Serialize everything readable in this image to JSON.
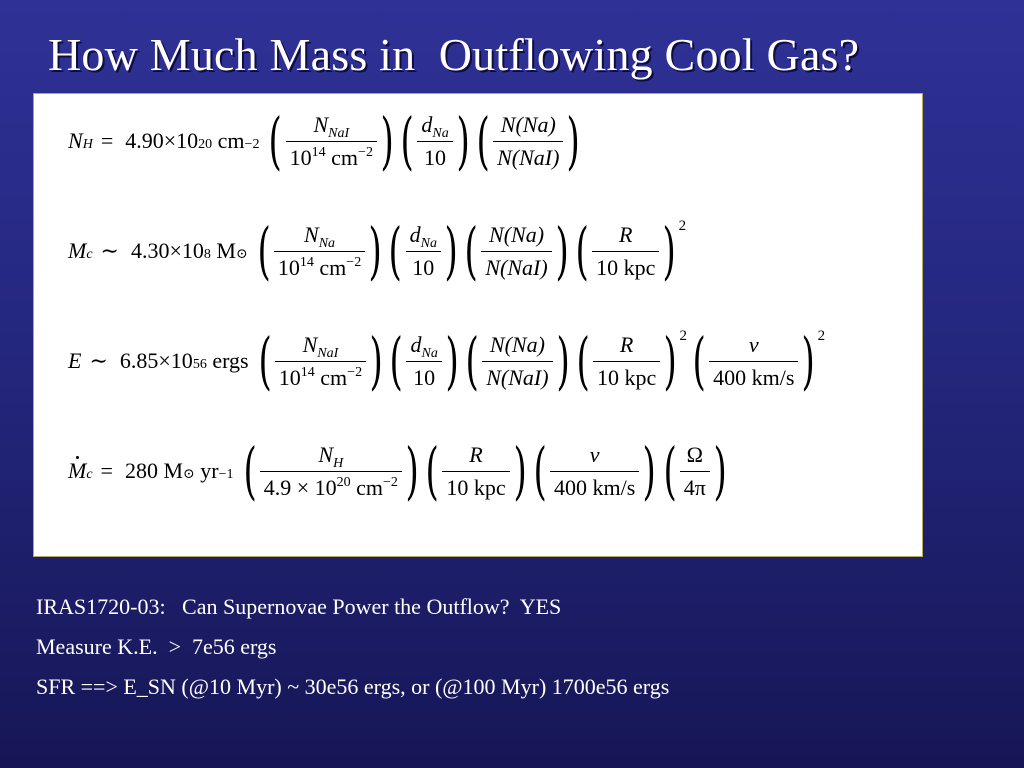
{
  "slide": {
    "title": "How Much Mass in  Outflowing Cool Gas?"
  },
  "equations": [
    {
      "lhs": "N",
      "lhs_sub": "H",
      "relation": "=",
      "constant": "4.90×10",
      "constant_exp": "20",
      "unit": " cm",
      "unit_exp": "−2",
      "factors": [
        {
          "num": "N",
          "num_sub": "NaI",
          "den": "10",
          "den_exp": "14",
          "den_rest": " cm",
          "den_rest_exp": "−2"
        },
        {
          "num": "d",
          "num_sub": "Na",
          "den": "10"
        },
        {
          "num": "N(Na)",
          "den": "N(NaI)"
        }
      ]
    },
    {
      "lhs": "M",
      "lhs_sub": "c",
      "relation": "∼",
      "constant": "4.30×10",
      "constant_exp": "8",
      "unit": " M",
      "unit_sub": "⊙",
      "factors": [
        {
          "num": "N",
          "num_sub": "Na",
          "den": "10",
          "den_exp": "14",
          "den_rest": " cm",
          "den_rest_exp": "−2"
        },
        {
          "num": "d",
          "num_sub": "Na",
          "den": "10"
        },
        {
          "num": "N(Na)",
          "den": "N(NaI)"
        },
        {
          "num": "R",
          "den": "10 kpc",
          "outer_exp": "2"
        }
      ]
    },
    {
      "lhs": "E",
      "relation": "∼",
      "constant": "6.85×10",
      "constant_exp": "56",
      "unit": " ergs",
      "factors": [
        {
          "num": "N",
          "num_sub": "NaI",
          "den": "10",
          "den_exp": "14",
          "den_rest": " cm",
          "den_rest_exp": "−2"
        },
        {
          "num": "d",
          "num_sub": "Na",
          "den": "10"
        },
        {
          "num": "N(Na)",
          "den": "N(NaI)"
        },
        {
          "num": "R",
          "den": "10 kpc",
          "outer_exp": "2"
        },
        {
          "num": "v",
          "den": "400 km/s",
          "outer_exp": "2"
        }
      ]
    },
    {
      "lhs": "M",
      "lhs_sub": "c",
      "relation": "=",
      "constant": "280",
      "unit": " M",
      "unit_sub": "⊙",
      "unit_tail": " yr",
      "unit_tail_exp": "−1",
      "factors": [
        {
          "num": "N",
          "num_sub": "H",
          "den": "4.9 × 10",
          "den_exp": "20",
          "den_rest": " cm",
          "den_rest_exp": "−2"
        },
        {
          "num": "R",
          "den": "10 kpc"
        },
        {
          "num": "v",
          "den": "400 km/s"
        },
        {
          "num": "Ω",
          "den": "4π"
        }
      ]
    }
  ],
  "bullets": [
    "IRAS1720-03:   Can Supernovae Power the Outflow?  YES",
    "Measure K.E.  >  7e56 ergs",
    "SFR ==> E_SN (@10 Myr) ~ 30e56 ergs, or (@100 Myr) 1700e56 ergs"
  ]
}
